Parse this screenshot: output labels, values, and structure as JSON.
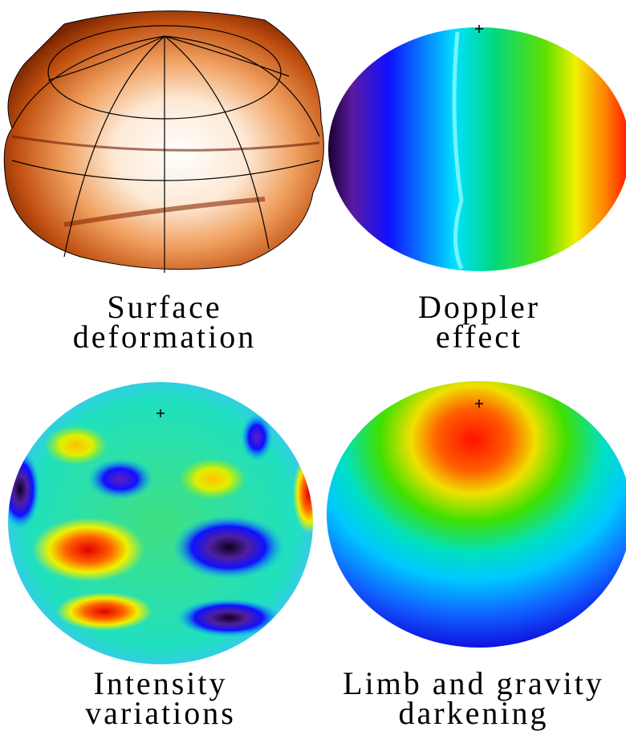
{
  "panels": [
    {
      "label": [
        "Surface",
        "deformation"
      ]
    },
    {
      "label": [
        "Doppler",
        "effect"
      ]
    },
    {
      "label": [
        "Intensity",
        "variations"
      ]
    },
    {
      "label": [
        "Limb and gravity",
        "darkening"
      ]
    }
  ]
}
